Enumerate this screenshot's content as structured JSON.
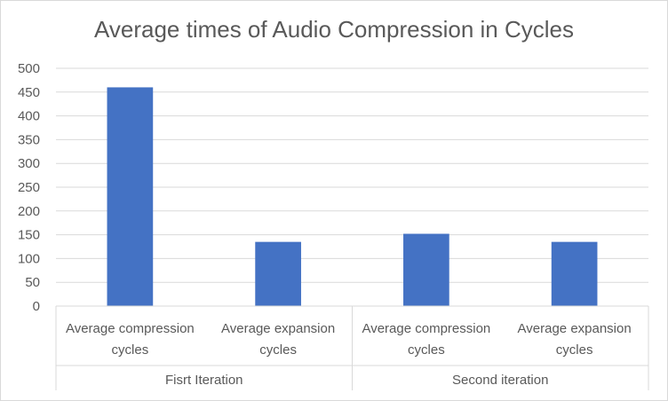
{
  "chart_data": {
    "type": "bar",
    "title": "Average times of Audio Compression in Cycles",
    "groups": [
      {
        "name": "Fisrt Iteration",
        "categories": [
          "Average compression cycles",
          "Average expansion cycles"
        ],
        "values": [
          460,
          135
        ]
      },
      {
        "name": "Second iteration",
        "categories": [
          "Average compression cycles",
          "Average expansion cycles"
        ],
        "values": [
          152,
          135
        ]
      }
    ],
    "category_lines": [
      [
        "Average compression",
        "cycles"
      ],
      [
        "Average expansion",
        "cycles"
      ],
      [
        "Average compression",
        "cycles"
      ],
      [
        "Average expansion",
        "cycles"
      ]
    ],
    "yticks": [
      0,
      50,
      100,
      150,
      200,
      250,
      300,
      350,
      400,
      450,
      500
    ],
    "ylim": [
      0,
      500
    ],
    "xlabel": "",
    "ylabel": "",
    "grid": true,
    "legend": "none",
    "bar_color": "#4472c4",
    "grid_color": "#d9d9d9",
    "text_color": "#595959"
  }
}
